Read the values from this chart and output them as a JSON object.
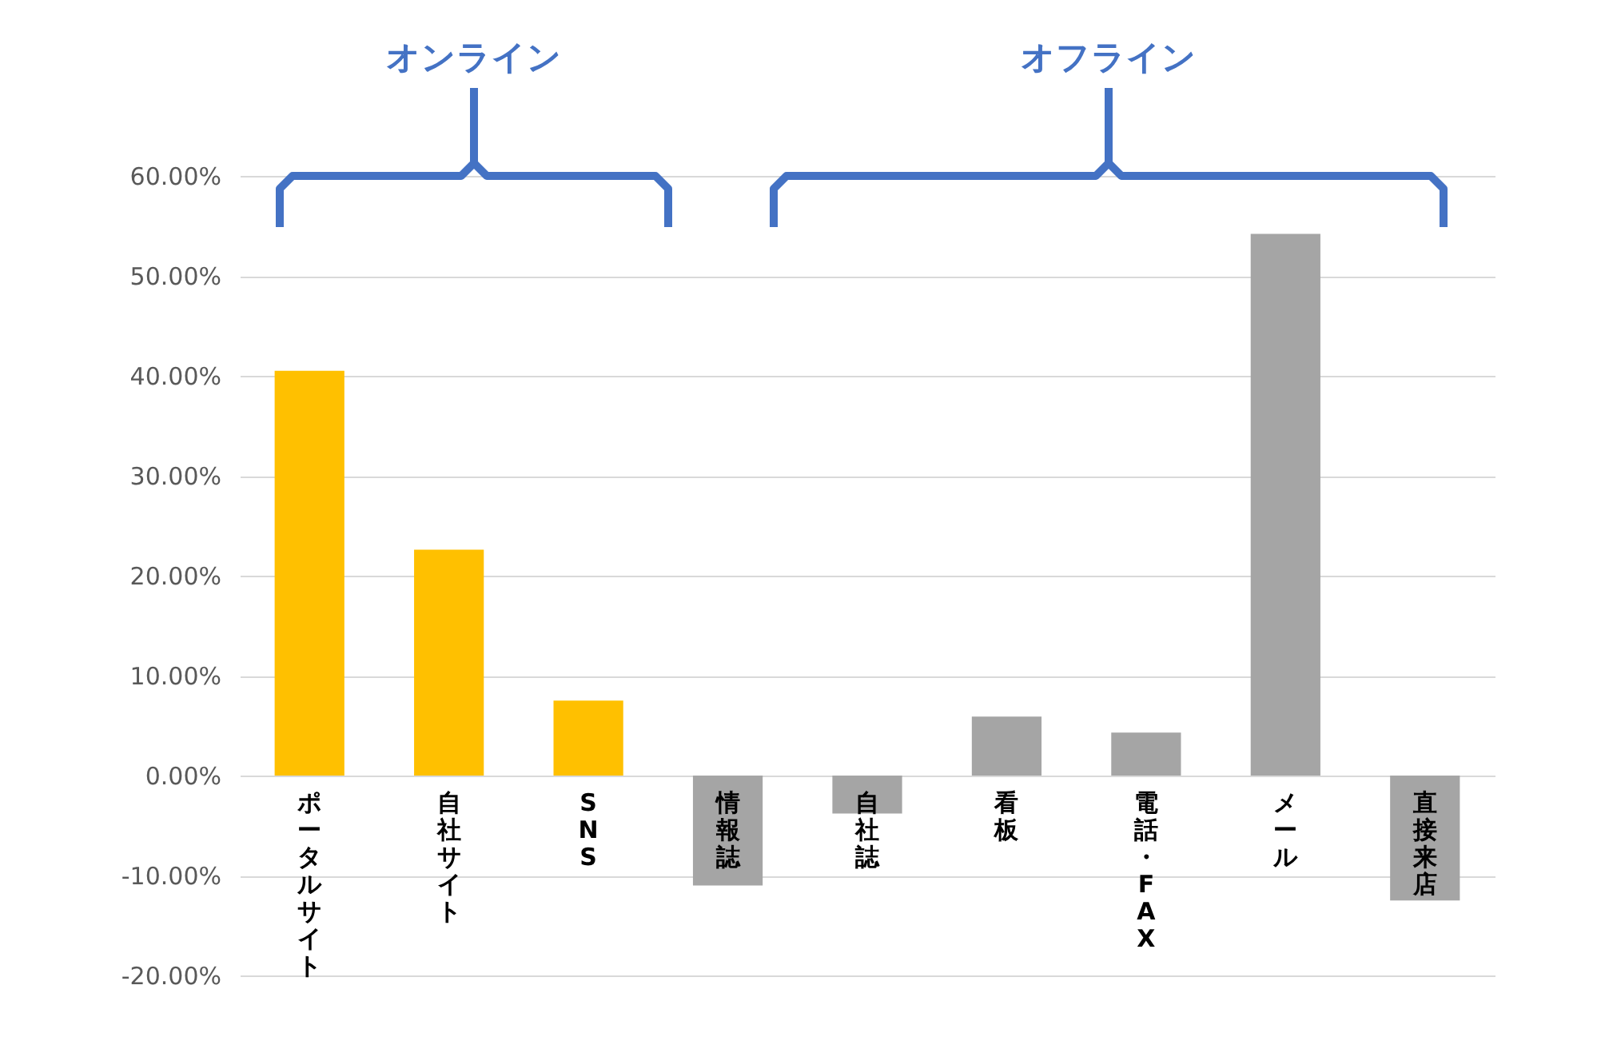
{
  "chart_data": {
    "type": "bar",
    "categories": [
      "ポータルサイト",
      "自社サイト",
      "SNS",
      "情報誌",
      "自社誌",
      "看板",
      "電話・FAX",
      "メール",
      "直接来店"
    ],
    "values": [
      40.5,
      22.6,
      7.5,
      -11.0,
      -3.8,
      5.9,
      4.3,
      54.2,
      -12.5
    ],
    "colors": [
      "#ffc000",
      "#ffc000",
      "#ffc000",
      "#a5a5a5",
      "#a5a5a5",
      "#a5a5a5",
      "#a5a5a5",
      "#a5a5a5",
      "#a5a5a5"
    ],
    "ylim": [
      -20,
      60
    ],
    "yticks": [
      {
        "value": -20,
        "label": "-20.00%"
      },
      {
        "value": -10,
        "label": "-10.00%"
      },
      {
        "value": 0,
        "label": "0.00%"
      },
      {
        "value": 10,
        "label": "10.00%"
      },
      {
        "value": 20,
        "label": "20.00%"
      },
      {
        "value": 30,
        "label": "30.00%"
      },
      {
        "value": 40,
        "label": "40.00%"
      },
      {
        "value": 50,
        "label": "50.00%"
      },
      {
        "value": 60,
        "label": "60.00%"
      }
    ],
    "annotations": [
      "オンライン",
      "オフライン"
    ],
    "grid": "y"
  }
}
